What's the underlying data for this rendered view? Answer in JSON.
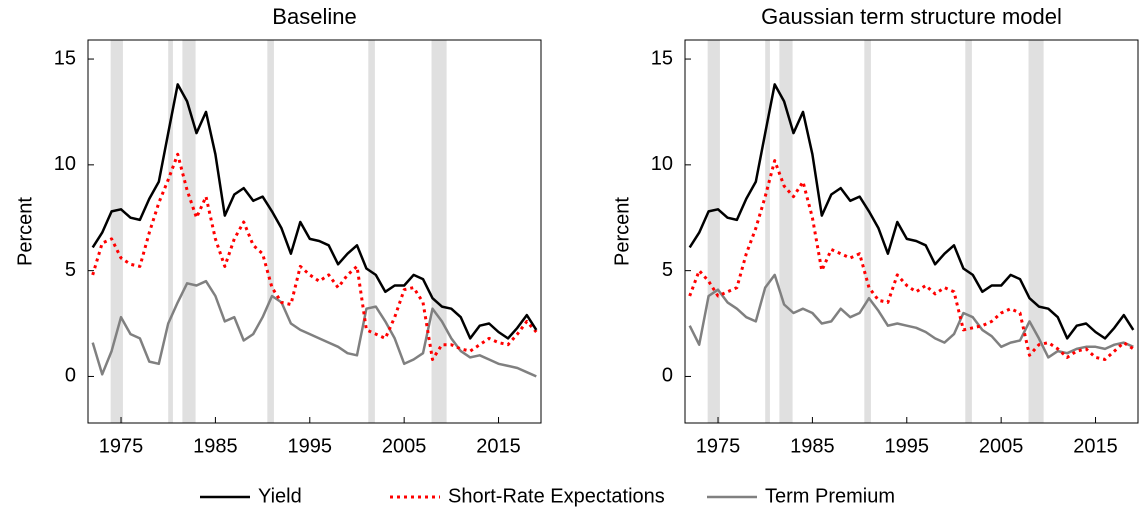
{
  "chart_data": [
    {
      "type": "line",
      "title": "Baseline",
      "ylabel": "Percent",
      "x": [
        1972,
        1973,
        1974,
        1975,
        1976,
        1977,
        1978,
        1979,
        1980,
        1981,
        1982,
        1983,
        1984,
        1985,
        1986,
        1987,
        1988,
        1989,
        1990,
        1991,
        1992,
        1993,
        1994,
        1995,
        1996,
        1997,
        1998,
        1999,
        2000,
        2001,
        2002,
        2003,
        2004,
        2005,
        2006,
        2007,
        2008,
        2009,
        2010,
        2011,
        2012,
        2013,
        2014,
        2015,
        2016,
        2017,
        2018,
        2019
      ],
      "xlim": [
        1971.5,
        2019.5
      ],
      "xticks": [
        1975,
        1985,
        1995,
        2005,
        2015
      ],
      "ylim": [
        -2.2,
        15.9
      ],
      "yticks": [
        0,
        5,
        10,
        15
      ],
      "grid": false,
      "shaded_regions": [
        [
          1973.9,
          1975.2
        ],
        [
          1980.0,
          1980.5
        ],
        [
          1981.5,
          1982.9
        ],
        [
          1990.5,
          1991.2
        ],
        [
          2001.2,
          2001.9
        ],
        [
          2007.9,
          2009.5
        ]
      ],
      "shade_color": "#e0e0e0",
      "legend": "bottom",
      "series": [
        {
          "name": "Yield",
          "color": "#000000",
          "style": "solid",
          "values": [
            6.1,
            6.8,
            7.8,
            7.9,
            7.5,
            7.4,
            8.4,
            9.2,
            11.5,
            13.8,
            13.0,
            11.5,
            12.5,
            10.5,
            7.6,
            8.6,
            8.9,
            8.3,
            8.5,
            7.8,
            7.0,
            5.8,
            7.3,
            6.5,
            6.4,
            6.2,
            5.3,
            5.8,
            6.2,
            5.1,
            4.8,
            4.0,
            4.3,
            4.3,
            4.8,
            4.6,
            3.7,
            3.3,
            3.2,
            2.8,
            1.8,
            2.4,
            2.5,
            2.1,
            1.8,
            2.3,
            2.9,
            2.2
          ]
        },
        {
          "name": "Short-Rate Expectations",
          "color": "#ff0000",
          "style": "dotted",
          "values": [
            4.8,
            6.3,
            6.5,
            5.6,
            5.3,
            5.2,
            6.8,
            8.2,
            9.3,
            10.5,
            8.8,
            7.5,
            8.5,
            6.5,
            5.2,
            6.5,
            7.3,
            6.2,
            5.8,
            4.2,
            3.5,
            3.4,
            5.2,
            4.8,
            4.5,
            4.8,
            4.2,
            4.8,
            5.2,
            2.2,
            2.0,
            1.8,
            2.8,
            4.1,
            4.2,
            3.5,
            0.8,
            1.5,
            1.5,
            1.3,
            1.2,
            1.5,
            1.8,
            1.6,
            1.5,
            2.0,
            2.6,
            2.1
          ]
        },
        {
          "name": "Term Premium",
          "color": "#808080",
          "style": "solid",
          "values": [
            1.6,
            0.1,
            1.2,
            2.8,
            2.0,
            1.8,
            0.7,
            0.6,
            2.5,
            3.5,
            4.4,
            4.3,
            4.5,
            3.8,
            2.6,
            2.8,
            1.7,
            2.0,
            2.8,
            3.8,
            3.5,
            2.5,
            2.2,
            2.0,
            1.8,
            1.6,
            1.4,
            1.1,
            1.0,
            3.2,
            3.3,
            2.6,
            1.8,
            0.6,
            0.8,
            1.1,
            3.2,
            2.6,
            1.8,
            1.2,
            0.9,
            1.0,
            0.8,
            0.6,
            0.5,
            0.4,
            0.2,
            0.0
          ]
        }
      ]
    },
    {
      "type": "line",
      "title": "Gaussian term structure model",
      "ylabel": "Percent",
      "x": [
        1972,
        1973,
        1974,
        1975,
        1976,
        1977,
        1978,
        1979,
        1980,
        1981,
        1982,
        1983,
        1984,
        1985,
        1986,
        1987,
        1988,
        1989,
        1990,
        1991,
        1992,
        1993,
        1994,
        1995,
        1996,
        1997,
        1998,
        1999,
        2000,
        2001,
        2002,
        2003,
        2004,
        2005,
        2006,
        2007,
        2008,
        2009,
        2010,
        2011,
        2012,
        2013,
        2014,
        2015,
        2016,
        2017,
        2018,
        2019
      ],
      "xlim": [
        1971.5,
        2019.5
      ],
      "xticks": [
        1975,
        1985,
        1995,
        2005,
        2015
      ],
      "ylim": [
        -2.2,
        15.9
      ],
      "yticks": [
        0,
        5,
        10,
        15
      ],
      "grid": false,
      "shaded_regions": [
        [
          1973.9,
          1975.2
        ],
        [
          1980.0,
          1980.5
        ],
        [
          1981.5,
          1982.9
        ],
        [
          1990.5,
          1991.2
        ],
        [
          2001.2,
          2001.9
        ],
        [
          2007.9,
          2009.5
        ]
      ],
      "shade_color": "#e0e0e0",
      "series": [
        {
          "name": "Yield",
          "color": "#000000",
          "style": "solid",
          "values": [
            6.1,
            6.8,
            7.8,
            7.9,
            7.5,
            7.4,
            8.4,
            9.2,
            11.5,
            13.8,
            13.0,
            11.5,
            12.5,
            10.5,
            7.6,
            8.6,
            8.9,
            8.3,
            8.5,
            7.8,
            7.0,
            5.8,
            7.3,
            6.5,
            6.4,
            6.2,
            5.3,
            5.8,
            6.2,
            5.1,
            4.8,
            4.0,
            4.3,
            4.3,
            4.8,
            4.6,
            3.7,
            3.3,
            3.2,
            2.8,
            1.8,
            2.4,
            2.5,
            2.1,
            1.8,
            2.3,
            2.9,
            2.2
          ]
        },
        {
          "name": "Short-Rate Expectations",
          "color": "#ff0000",
          "style": "dotted",
          "values": [
            3.8,
            5.0,
            4.5,
            3.8,
            4.0,
            4.2,
            5.8,
            7.0,
            8.5,
            10.2,
            9.0,
            8.5,
            9.2,
            7.5,
            5.0,
            6.0,
            5.8,
            5.6,
            5.8,
            4.2,
            3.6,
            3.5,
            4.8,
            4.3,
            4.0,
            4.3,
            3.9,
            4.2,
            4.0,
            2.2,
            2.3,
            2.4,
            2.6,
            3.0,
            3.2,
            3.0,
            1.0,
            1.5,
            1.6,
            1.3,
            0.9,
            1.2,
            1.3,
            0.9,
            0.8,
            1.2,
            1.6,
            1.3
          ]
        },
        {
          "name": "Term Premium",
          "color": "#808080",
          "style": "solid",
          "values": [
            2.4,
            1.5,
            3.8,
            4.1,
            3.5,
            3.2,
            2.8,
            2.6,
            4.2,
            4.8,
            3.4,
            3.0,
            3.2,
            3.0,
            2.5,
            2.6,
            3.2,
            2.8,
            3.0,
            3.7,
            3.1,
            2.4,
            2.5,
            2.4,
            2.3,
            2.1,
            1.8,
            1.6,
            2.0,
            3.0,
            2.8,
            2.2,
            1.9,
            1.4,
            1.6,
            1.7,
            2.6,
            1.8,
            0.9,
            1.2,
            1.1,
            1.3,
            1.4,
            1.4,
            1.3,
            1.5,
            1.6,
            1.4
          ]
        }
      ]
    }
  ]
}
